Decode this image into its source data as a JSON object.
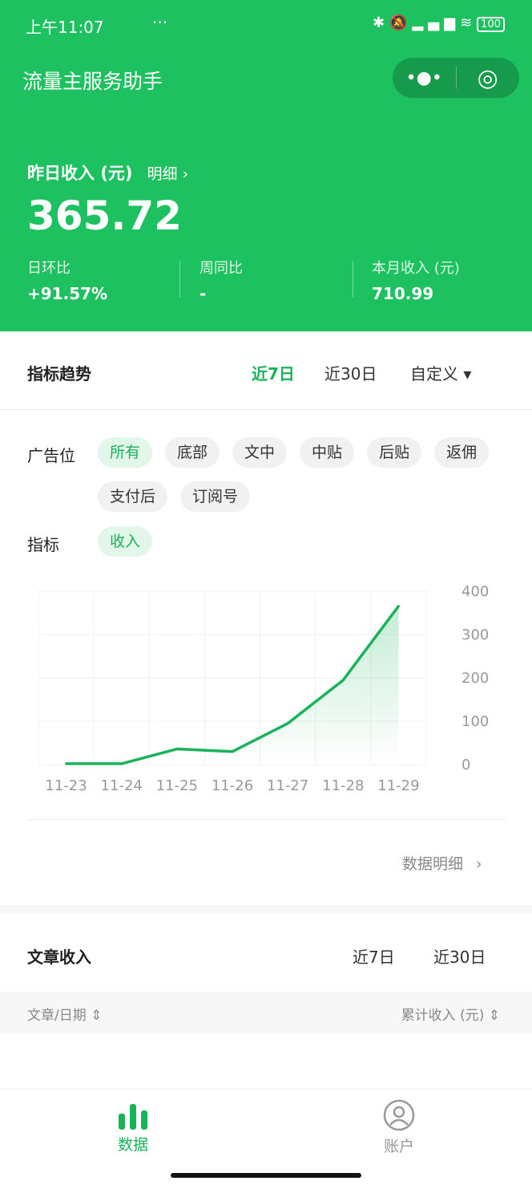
{
  "status_bar": {
    "time": "上午11:07",
    "icons": [
      "notification-dots",
      "bluetooth-icon",
      "mute-icon",
      "signal-icon",
      "signal-icon",
      "wifi-icon"
    ],
    "battery": "100",
    "more": "···"
  },
  "app": {
    "title": "流量主服务助手",
    "menu_icon": "•●•",
    "close_icon": "◎"
  },
  "summary": {
    "label": "昨日收入 (元)",
    "detail_link": "明细 ›",
    "amount": "365.72",
    "stats": [
      {
        "label": "日环比",
        "value": "+91.57%"
      },
      {
        "label": "周同比",
        "value": "-"
      },
      {
        "label": "本月收入 (元)",
        "value": "710.99"
      }
    ]
  },
  "trend": {
    "title": "指标趋势",
    "tabs": [
      "近7日",
      "近30日",
      "自定义 ▾"
    ],
    "active_tab": 0,
    "ad_slot_label": "广告位",
    "ad_slots": [
      "所有",
      "底部",
      "文中",
      "中贴",
      "后贴",
      "返佣",
      "支付后",
      "订阅号"
    ],
    "metric_label": "指标",
    "metrics": [
      "收入"
    ],
    "detail_link": "数据明细"
  },
  "chart_data": {
    "type": "area",
    "categories": [
      "11-23",
      "11-24",
      "11-25",
      "11-26",
      "11-27",
      "11-28",
      "11-29"
    ],
    "values": [
      2,
      2,
      36,
      30,
      95,
      195,
      365.72
    ],
    "ylim": [
      0,
      400
    ],
    "yticks": [
      0,
      100,
      200,
      300,
      400
    ],
    "grid": true,
    "y_axis": "right",
    "color": "#1ab35a"
  },
  "articles": {
    "title": "文章收入",
    "tabs": [
      "近7日",
      "近30日"
    ],
    "columns": [
      "文章/日期 ⇕",
      "累计收入 (元) ⇕"
    ]
  },
  "tabbar": {
    "items": [
      {
        "label": "数据",
        "icon": "bar-chart-icon",
        "active": true
      },
      {
        "label": "账户",
        "icon": "user-icon",
        "active": false
      }
    ]
  },
  "colors": {
    "brand": "#1ec15f",
    "accent": "#1ab35a"
  }
}
